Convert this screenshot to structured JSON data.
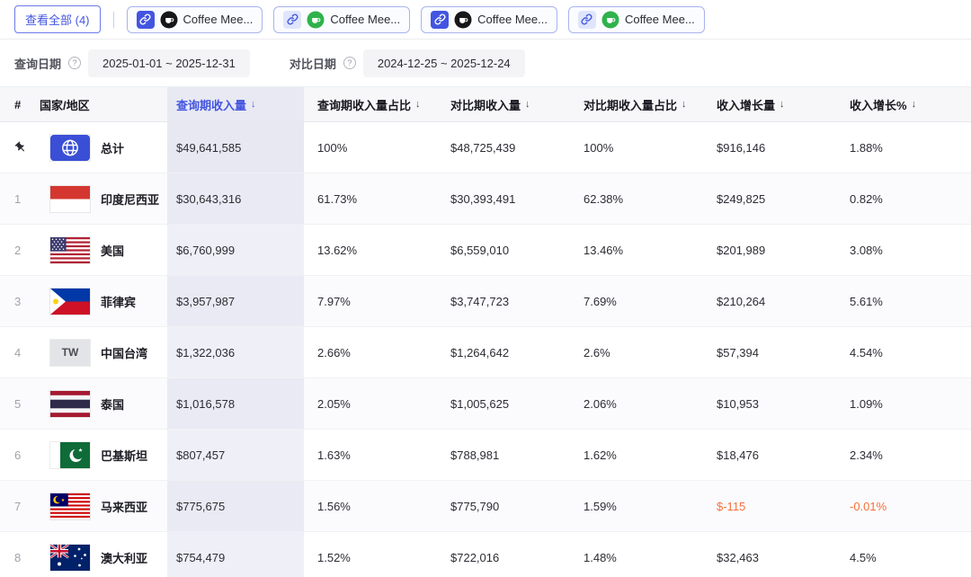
{
  "colors": {
    "accent": "#4355e0",
    "negative": "#f9703a"
  },
  "topbar": {
    "view_all_label": "查看全部 (4)",
    "chips": [
      {
        "label": "Coffee Mee...",
        "link_icon": "chain-link-icon",
        "app_icon": "dark-app-icon"
      },
      {
        "label": "Coffee Mee...",
        "link_icon": "chain-link-icon",
        "app_icon": "green-app-icon"
      },
      {
        "label": "Coffee Mee...",
        "link_icon": "chain-link-icon",
        "app_icon": "dark-app-icon"
      },
      {
        "label": "Coffee Mee...",
        "link_icon": "chain-link-icon",
        "app_icon": "green-app-icon"
      }
    ]
  },
  "filters": {
    "query_date_label": "查询日期",
    "query_date_range": "2025-01-01  ~  2025-12-31",
    "compare_date_label": "对比日期",
    "compare_date_range": "2024-12-25  ~  2025-12-24",
    "help_icon": "help-icon"
  },
  "table": {
    "sorted_column_index": 2,
    "sort_icon": "sort-desc-arrow-icon",
    "columns": [
      "#",
      "国家/地区",
      "查询期收入量",
      "查询期收入量占比",
      "对比期收入量",
      "对比期收入量占比",
      "收入增长量",
      "收入增长%"
    ],
    "rows": [
      {
        "rank": "",
        "pinned": true,
        "total": true,
        "flag": "globe",
        "name": "总计",
        "values": [
          "$49,641,585",
          "100%",
          "$48,725,439",
          "100%",
          "$916,146",
          "1.88%"
        ]
      },
      {
        "rank": "1",
        "flag": "indonesia",
        "name": "印度尼西亚",
        "values": [
          "$30,643,316",
          "61.73%",
          "$30,393,491",
          "62.38%",
          "$249,825",
          "0.82%"
        ]
      },
      {
        "rank": "2",
        "flag": "usa",
        "name": "美国",
        "values": [
          "$6,760,999",
          "13.62%",
          "$6,559,010",
          "13.46%",
          "$201,989",
          "3.08%"
        ]
      },
      {
        "rank": "3",
        "flag": "philippines",
        "name": "菲律宾",
        "values": [
          "$3,957,987",
          "7.97%",
          "$3,747,723",
          "7.69%",
          "$210,264",
          "5.61%"
        ]
      },
      {
        "rank": "4",
        "flag": "taiwan",
        "flag_text": "TW",
        "name": "中国台湾",
        "values": [
          "$1,322,036",
          "2.66%",
          "$1,264,642",
          "2.6%",
          "$57,394",
          "4.54%"
        ]
      },
      {
        "rank": "5",
        "flag": "thailand",
        "name": "泰国",
        "values": [
          "$1,016,578",
          "2.05%",
          "$1,005,625",
          "2.06%",
          "$10,953",
          "1.09%"
        ]
      },
      {
        "rank": "6",
        "flag": "pakistan",
        "name": "巴基斯坦",
        "values": [
          "$807,457",
          "1.63%",
          "$788,981",
          "1.62%",
          "$18,476",
          "2.34%"
        ]
      },
      {
        "rank": "7",
        "flag": "malaysia",
        "name": "马来西亚",
        "values": [
          "$775,675",
          "1.56%",
          "$775,790",
          "1.59%",
          "$-115",
          "-0.01%"
        ]
      },
      {
        "rank": "8",
        "flag": "australia",
        "name": "澳大利亚",
        "values": [
          "$754,479",
          "1.52%",
          "$722,016",
          "1.48%",
          "$32,463",
          "4.5%"
        ]
      }
    ]
  }
}
